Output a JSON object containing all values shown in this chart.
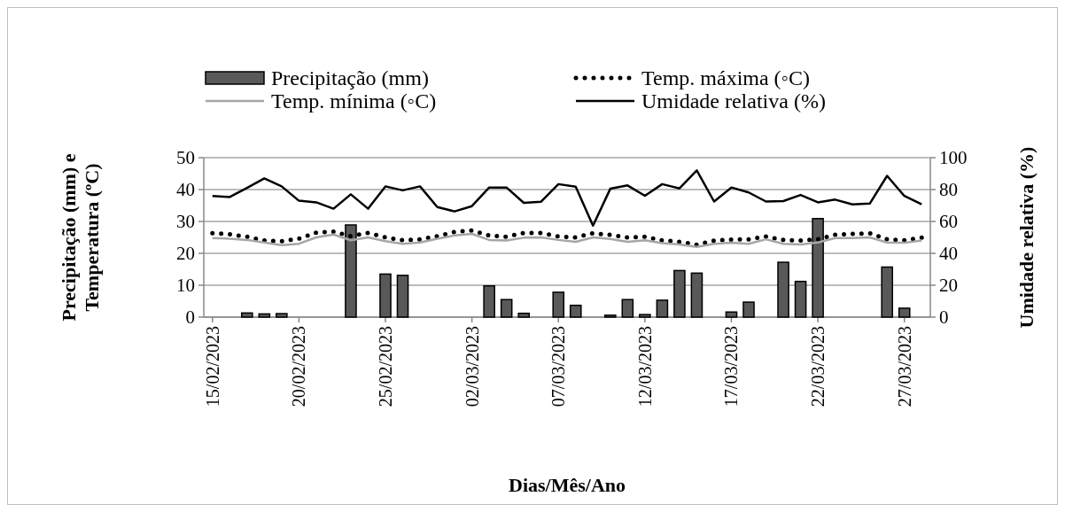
{
  "chart_data": {
    "type": "bar",
    "xlabel": "Dias/Mês/Ano",
    "ylabel": "Precipitação (mm) e\nTemperatura  (ºC)",
    "y2label": "Umidade relativa  (%)",
    "categories": [
      "15/02/2023",
      null,
      null,
      null,
      null,
      "20/02/2023",
      null,
      null,
      null,
      null,
      "25/02/2023",
      null,
      null,
      null,
      null,
      "02/03/2023",
      null,
      null,
      null,
      null,
      "07/03/2023",
      null,
      null,
      null,
      null,
      "12/03/2023",
      null,
      null,
      null,
      null,
      "17/03/2023",
      null,
      null,
      null,
      null,
      "22/03/2023",
      null,
      null,
      null,
      null,
      "27/03/2023",
      null
    ],
    "series": [
      {
        "name": "Precipitação (mm)",
        "color": "#595959",
        "values": [
          0,
          0,
          1.3,
          1,
          1.1,
          0,
          0,
          0,
          28.9,
          0,
          13.5,
          13.1,
          0,
          0,
          0,
          0,
          9.8,
          5.5,
          1.2,
          0,
          7.8,
          3.7,
          0,
          0.6,
          5.5,
          0.8,
          5.3,
          14.6,
          13.8,
          0,
          1.6,
          4.7,
          0,
          17.2,
          11.2,
          30.9,
          0,
          0,
          0,
          15.7,
          2.8,
          0
        ]
      },
      {
        "name": "Temp. máxima (◦C)",
        "type": "line",
        "color": "#000000",
        "line_style": "dotted",
        "values": [
          26.3,
          26,
          25.2,
          24,
          23.8,
          24.6,
          26.5,
          26.8,
          25.4,
          26.4,
          25,
          24.1,
          24.4,
          25.4,
          26.7,
          27.2,
          25.6,
          25.2,
          26.4,
          26.4,
          25.3,
          25,
          26.3,
          25.8,
          25,
          25.2,
          24.1,
          23.6,
          22.7,
          24,
          24.3,
          24.4,
          25.3,
          24.2,
          24,
          24.4,
          25.8,
          26.1,
          26.3,
          24.4,
          24.1,
          24.9
        ]
      },
      {
        "name": "Temp. mínima  (◦C)",
        "type": "line",
        "color": "#a6a6a6",
        "line_style": "solid",
        "values": [
          24.8,
          24.6,
          24.2,
          23.4,
          22.6,
          23,
          25,
          25.9,
          24.1,
          25,
          23.8,
          23,
          23.4,
          24.6,
          25.6,
          26.1,
          24.2,
          24,
          24.9,
          25,
          24.2,
          23.6,
          25,
          24.5,
          23.6,
          24.1,
          23.2,
          22.8,
          22,
          23,
          23.3,
          23,
          24.4,
          23,
          22.8,
          23.4,
          24.8,
          24.8,
          25,
          23.4,
          23.3,
          24
        ]
      },
      {
        "name": "Umidade relativa (%)",
        "type": "line",
        "axis": "y2",
        "color": "#000000",
        "line_style": "solid",
        "values": [
          76,
          75.3,
          81,
          87,
          82,
          73,
          72,
          68,
          77,
          68,
          82,
          79.5,
          82,
          69,
          66.3,
          69.6,
          81.3,
          81.3,
          71.7,
          72.4,
          83.4,
          81.8,
          57.4,
          80.5,
          82.6,
          76.1,
          83.4,
          80.7,
          92,
          72.5,
          81.3,
          78.2,
          72.5,
          72.8,
          76.6,
          72,
          73.7,
          70.7,
          71.2,
          88.6,
          76,
          70.7
        ]
      }
    ],
    "ylim": [
      0,
      50
    ],
    "yticks": [
      0,
      10,
      20,
      30,
      40,
      50
    ],
    "y2lim": [
      0,
      100
    ],
    "y2ticks": [
      0,
      20,
      40,
      60,
      80,
      100
    ],
    "grid": "y",
    "legend": "top"
  }
}
